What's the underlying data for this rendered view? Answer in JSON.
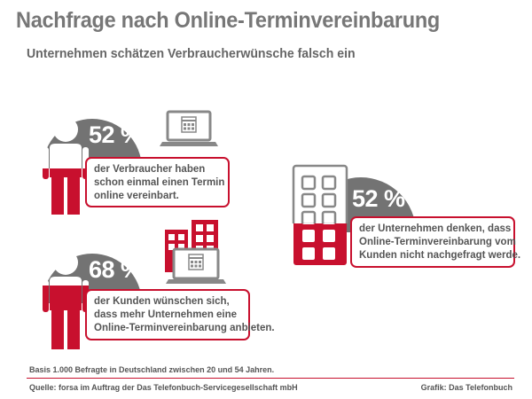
{
  "header": {
    "title": "Nachfrage nach Online-Terminvereinbarung",
    "subtitle": "Unternehmen schätzen Verbraucherwünsche falsch ein"
  },
  "stats": [
    {
      "percent_label": "52 %",
      "value": 52,
      "text_lines": [
        "der Verbraucher haben",
        "schon einmal einen Termin",
        "online vereinbart."
      ],
      "icon": "person-icon"
    },
    {
      "percent_label": "68 %",
      "value": 68,
      "text_lines": [
        "der Kunden wünschen sich,",
        "dass mehr Unternehmen eine",
        "Online-Terminvereinbarung anbieten."
      ],
      "icon": "person-icon"
    },
    {
      "percent_label": "52 %",
      "value": 52,
      "text_lines": [
        "der Unternehmen denken, dass",
        "Online-Terminvereinbarung vom",
        "Kunden nicht nachgefragt werde."
      ],
      "icon": "building-icon"
    }
  ],
  "footer": {
    "basis": "Basis 1.000 Befragte in Deutschland zwischen 20 und 54 Jahren.",
    "source": "Quelle: forsa im Auftrag der Das Telefonbuch-Servicegesellschaft mbH",
    "credit": "Grafik: Das Telefonbuch"
  },
  "colors": {
    "accent_red": "#c8102e",
    "circle_gray": "#737373",
    "icon_gray": "#888888",
    "text_gray": "#555555"
  }
}
